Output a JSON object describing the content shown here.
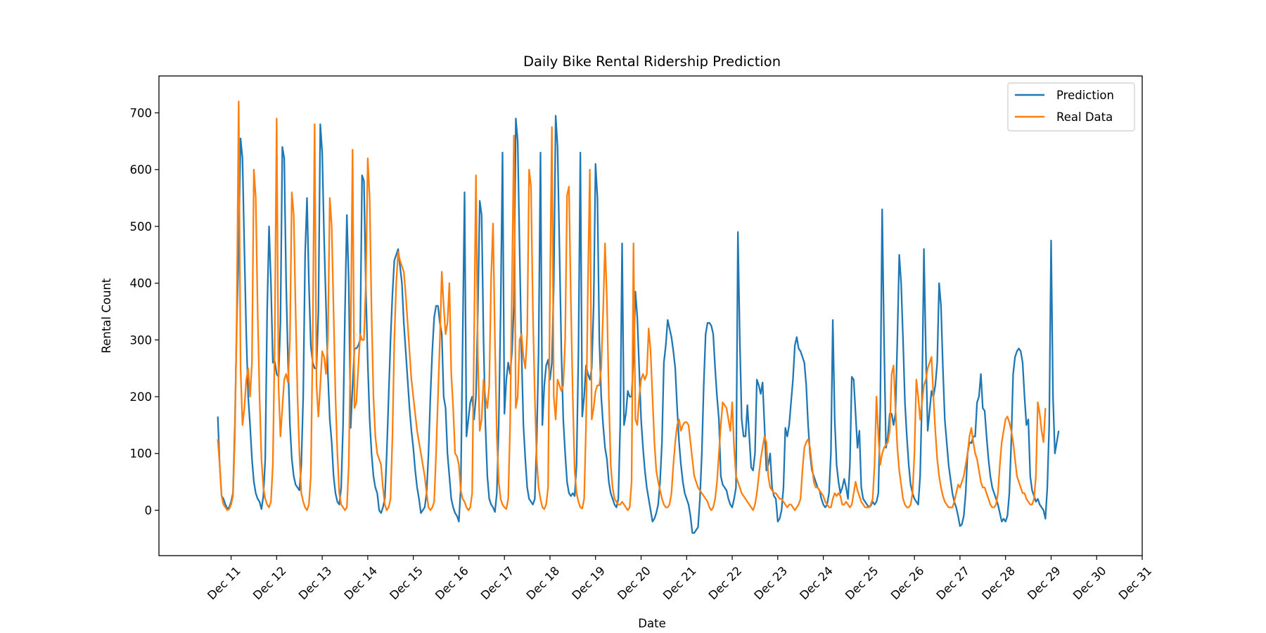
{
  "chart_data": {
    "type": "line",
    "title": "Daily Bike Rental Ridership Prediction",
    "xlabel": "Date",
    "ylabel": "Rental Count",
    "x_tick_labels": [
      "Dec 11",
      "Dec 12",
      "Dec 13",
      "Dec 14",
      "Dec 15",
      "Dec 16",
      "Dec 17",
      "Dec 18",
      "Dec 19",
      "Dec 20",
      "Dec 21",
      "Dec 22",
      "Dec 23",
      "Dec 24",
      "Dec 25",
      "Dec 26",
      "Dec 27",
      "Dec 28",
      "Dec 29",
      "Dec 30",
      "Dec 31"
    ],
    "x_tick_values": [
      "2012-12-11",
      "2012-12-12",
      "2012-12-13",
      "2012-12-14",
      "2012-12-15",
      "2012-12-16",
      "2012-12-17",
      "2012-12-18",
      "2012-12-19",
      "2012-12-20",
      "2012-12-21",
      "2012-12-22",
      "2012-12-23",
      "2012-12-24",
      "2012-12-25",
      "2012-12-26",
      "2012-12-27",
      "2012-12-28",
      "2012-12-29",
      "2012-12-30",
      "2012-12-31"
    ],
    "y_ticks": [
      0,
      100,
      200,
      300,
      400,
      500,
      600,
      700
    ],
    "xlim": [
      "2012-12-09 10:00",
      "2012-12-31 00:00"
    ],
    "ylim": [
      -80,
      765
    ],
    "grid": false,
    "legend_position": "upper right",
    "x_resolution": "hourly",
    "x_start": "2012-12-10 17:00",
    "series": [
      {
        "name": "Prediction",
        "color": "#1f77b4",
        "values": [
          165,
          80,
          25,
          20,
          10,
          3,
          5,
          15,
          30,
          150,
          330,
          460,
          655,
          620,
          460,
          310,
          200,
          150,
          90,
          50,
          30,
          20,
          15,
          2,
          25,
          90,
          350,
          500,
          400,
          260,
          262,
          240,
          235,
          330,
          640,
          620,
          400,
          260,
          150,
          90,
          60,
          45,
          40,
          35,
          80,
          200,
          450,
          550,
          400,
          290,
          260,
          250,
          250,
          350,
          680,
          630,
          480,
          360,
          240,
          160,
          120,
          60,
          30,
          15,
          10,
          40,
          150,
          350,
          520,
          400,
          145,
          220,
          285,
          285,
          290,
          300,
          590,
          580,
          390,
          260,
          160,
          100,
          60,
          40,
          30,
          0,
          -5,
          5,
          20,
          100,
          200,
          300,
          380,
          440,
          450,
          460,
          430,
          400,
          330,
          280,
          230,
          180,
          140,
          110,
          70,
          40,
          20,
          -5,
          0,
          5,
          30,
          100,
          200,
          280,
          340,
          360,
          360,
          330,
          310,
          200,
          180,
          100,
          60,
          20,
          5,
          -5,
          -10,
          -20,
          40,
          300,
          560,
          130,
          160,
          190,
          200,
          160,
          200,
          350,
          545,
          520,
          300,
          150,
          60,
          20,
          10,
          5,
          -3,
          30,
          150,
          350,
          630,
          170,
          230,
          260,
          240,
          280,
          360,
          690,
          650,
          460,
          280,
          150,
          90,
          40,
          20,
          15,
          10,
          20,
          120,
          280,
          630,
          150,
          220,
          255,
          265,
          230,
          260,
          400,
          695,
          640,
          460,
          280,
          160,
          100,
          50,
          30,
          25,
          30,
          25,
          80,
          280,
          630,
          165,
          200,
          255,
          240,
          230,
          250,
          360,
          610,
          550,
          300,
          200,
          150,
          110,
          90,
          50,
          30,
          20,
          10,
          5,
          20,
          150,
          470,
          150,
          170,
          210,
          200,
          200,
          270,
          385,
          340,
          250,
          160,
          110,
          70,
          40,
          20,
          0,
          -20,
          -15,
          -5,
          10,
          50,
          120,
          260,
          290,
          335,
          320,
          305,
          280,
          250,
          180,
          120,
          80,
          50,
          30,
          20,
          10,
          -10,
          -40,
          -40,
          -35,
          -30,
          20,
          100,
          220,
          310,
          330,
          330,
          325,
          310,
          250,
          200,
          160,
          60,
          45,
          40,
          35,
          20,
          10,
          5,
          20,
          40,
          490,
          300,
          160,
          130,
          130,
          185,
          130,
          75,
          70,
          100,
          230,
          220,
          205,
          225,
          150,
          70,
          80,
          100,
          40,
          25,
          20,
          -20,
          -15,
          0,
          40,
          145,
          130,
          150,
          190,
          230,
          290,
          305,
          285,
          280,
          270,
          260,
          220,
          150,
          100,
          70,
          60,
          50,
          40,
          35,
          20,
          10,
          5,
          10,
          30,
          100,
          335,
          160,
          80,
          50,
          30,
          40,
          55,
          40,
          20,
          80,
          235,
          230,
          170,
          110,
          140,
          40,
          20,
          15,
          10,
          5,
          8,
          15,
          10,
          15,
          30,
          180,
          530,
          300,
          110,
          130,
          170,
          170,
          150,
          170,
          300,
          450,
          400,
          300,
          190,
          130,
          80,
          45,
          30,
          20,
          15,
          10,
          60,
          200,
          460,
          280,
          140,
          175,
          210,
          200,
          220,
          260,
          400,
          360,
          250,
          160,
          120,
          80,
          55,
          30,
          15,
          5,
          -10,
          -28,
          -25,
          -10,
          30,
          100,
          120,
          118,
          130,
          130,
          190,
          200,
          240,
          180,
          175,
          130,
          90,
          60,
          40,
          30,
          20,
          10,
          -5,
          -20,
          -15,
          -20,
          -10,
          30,
          120,
          240,
          270,
          280,
          285,
          280,
          260,
          200,
          150,
          160,
          60,
          35,
          25,
          15,
          20,
          10,
          5,
          0,
          -15,
          40,
          150,
          475,
          200,
          100,
          120,
          140
        ]
      },
      {
        "name": "Real Data",
        "color": "#ff7f0e",
        "values": [
          125,
          80,
          25,
          10,
          5,
          0,
          2,
          10,
          25,
          130,
          350,
          720,
          250,
          150,
          180,
          230,
          250,
          200,
          260,
          600,
          550,
          350,
          200,
          90,
          40,
          20,
          10,
          5,
          15,
          80,
          300,
          690,
          220,
          130,
          180,
          230,
          240,
          225,
          300,
          560,
          520,
          350,
          200,
          100,
          30,
          15,
          5,
          0,
          10,
          60,
          300,
          680,
          220,
          165,
          220,
          280,
          270,
          240,
          300,
          550,
          500,
          350,
          200,
          100,
          30,
          10,
          5,
          0,
          5,
          80,
          300,
          635,
          180,
          190,
          250,
          310,
          300,
          300,
          400,
          620,
          550,
          350,
          200,
          130,
          100,
          90,
          80,
          40,
          10,
          0,
          5,
          20,
          130,
          300,
          400,
          455,
          440,
          430,
          420,
          380,
          330,
          280,
          230,
          200,
          170,
          140,
          120,
          100,
          80,
          60,
          30,
          5,
          0,
          5,
          15,
          100,
          200,
          300,
          420,
          360,
          310,
          330,
          400,
          240,
          180,
          100,
          95,
          80,
          35,
          20,
          15,
          5,
          0,
          5,
          30,
          300,
          590,
          270,
          140,
          160,
          230,
          200,
          180,
          220,
          410,
          505,
          300,
          130,
          50,
          20,
          10,
          5,
          2,
          20,
          150,
          400,
          660,
          180,
          200,
          300,
          310,
          270,
          250,
          310,
          600,
          570,
          350,
          200,
          90,
          40,
          20,
          5,
          2,
          10,
          40,
          380,
          675,
          200,
          160,
          230,
          220,
          210,
          220,
          300,
          555,
          570,
          370,
          200,
          70,
          30,
          15,
          5,
          3,
          20,
          150,
          400,
          600,
          160,
          180,
          210,
          220,
          220,
          250,
          350,
          470,
          370,
          200,
          80,
          40,
          20,
          15,
          10,
          10,
          15,
          10,
          5,
          0,
          5,
          50,
          470,
          160,
          150,
          200,
          230,
          240,
          230,
          240,
          320,
          280,
          200,
          120,
          70,
          50,
          35,
          20,
          10,
          5,
          5,
          10,
          30,
          80,
          120,
          150,
          160,
          140,
          150,
          155,
          155,
          150,
          120,
          90,
          60,
          50,
          40,
          35,
          30,
          25,
          20,
          15,
          5,
          0,
          5,
          20,
          50,
          100,
          150,
          190,
          185,
          180,
          160,
          140,
          190,
          110,
          60,
          50,
          40,
          30,
          25,
          20,
          15,
          10,
          5,
          0,
          10,
          30,
          60,
          90,
          110,
          130,
          120,
          60,
          40,
          35,
          30,
          30,
          25,
          20,
          20,
          15,
          10,
          5,
          10,
          10,
          5,
          0,
          5,
          10,
          20,
          70,
          110,
          120,
          125,
          110,
          80,
          50,
          40,
          40,
          35,
          30,
          25,
          15,
          10,
          5,
          5,
          20,
          30,
          25,
          30,
          25,
          10,
          10,
          15,
          10,
          5,
          10,
          30,
          50,
          35,
          25,
          15,
          10,
          5,
          5,
          5,
          10,
          20,
          80,
          200,
          130,
          80,
          100,
          110,
          115,
          120,
          140,
          240,
          255,
          180,
          110,
          70,
          45,
          20,
          10,
          5,
          5,
          10,
          30,
          100,
          230,
          200,
          160,
          190,
          220,
          230,
          250,
          260,
          270,
          200,
          140,
          90,
          60,
          40,
          25,
          15,
          10,
          5,
          5,
          5,
          15,
          30,
          45,
          40,
          50,
          60,
          80,
          100,
          130,
          145,
          120,
          100,
          90,
          70,
          50,
          40,
          40,
          30,
          20,
          10,
          5,
          5,
          10,
          30,
          80,
          120,
          140,
          160,
          165,
          155,
          140,
          120,
          90,
          60,
          50,
          40,
          30,
          30,
          20,
          15,
          10,
          10,
          20,
          60,
          190,
          170,
          140,
          120,
          180
        ]
      }
    ]
  }
}
